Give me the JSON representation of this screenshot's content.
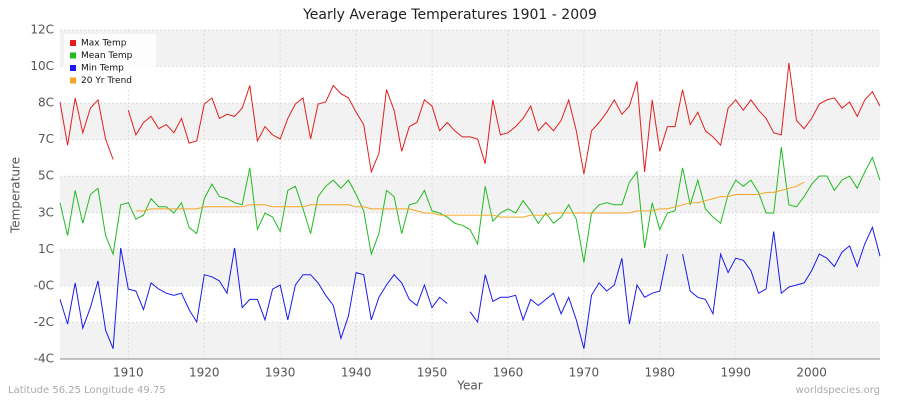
{
  "chart_data": {
    "type": "line",
    "title": "Yearly Average Temperatures 1901 - 2009",
    "x_label": "Year",
    "y_label": "Temperature",
    "footer_left": "Latitude 56.25 Longitude 49.75",
    "footer_right": "worldspecies.org",
    "legend": "top-left",
    "grid": true,
    "xlim": [
      1901,
      2009
    ],
    "xticks": [
      1910,
      1920,
      1930,
      1940,
      1950,
      1960,
      1970,
      1980,
      1990,
      2000
    ],
    "ylim": [
      -4,
      12
    ],
    "yticks": [
      {
        "value": -4,
        "label": "-4C"
      },
      {
        "value": -2.22,
        "label": "-2C"
      },
      {
        "value": -0.44,
        "label": "-0C"
      },
      {
        "value": 1.33,
        "label": "1C"
      },
      {
        "value": 3.11,
        "label": "3C"
      },
      {
        "value": 4.89,
        "label": "5C"
      },
      {
        "value": 6.67,
        "label": "7C"
      },
      {
        "value": 8.44,
        "label": "8C"
      },
      {
        "value": 10.22,
        "label": "10C"
      },
      {
        "value": 12,
        "label": "12C"
      }
    ],
    "x": [
      1901,
      1902,
      1903,
      1904,
      1905,
      1906,
      1907,
      1908,
      1909,
      1910,
      1911,
      1912,
      1913,
      1914,
      1915,
      1916,
      1917,
      1918,
      1919,
      1920,
      1921,
      1922,
      1923,
      1924,
      1925,
      1926,
      1927,
      1928,
      1929,
      1930,
      1931,
      1932,
      1933,
      1934,
      1935,
      1936,
      1937,
      1938,
      1939,
      1940,
      1941,
      1942,
      1943,
      1944,
      1945,
      1946,
      1947,
      1948,
      1949,
      1950,
      1951,
      1952,
      1953,
      1954,
      1955,
      1956,
      1957,
      1958,
      1959,
      1960,
      1961,
      1962,
      1963,
      1964,
      1965,
      1966,
      1967,
      1968,
      1969,
      1970,
      1971,
      1972,
      1973,
      1974,
      1975,
      1976,
      1977,
      1978,
      1979,
      1980,
      1981,
      1982,
      1983,
      1984,
      1985,
      1986,
      1987,
      1988,
      1989,
      1990,
      1991,
      1992,
      1993,
      1994,
      1995,
      1996,
      1997,
      1998,
      1999,
      2000,
      2001,
      2002,
      2003,
      2004,
      2005,
      2006,
      2007,
      2008,
      2009
    ],
    "series": [
      {
        "name": "Max Temp",
        "color": "#e02020",
        "values": [
          8.5,
          6.4,
          8.7,
          7.0,
          8.2,
          8.6,
          6.7,
          5.7,
          null,
          8.1,
          6.9,
          7.5,
          7.8,
          7.2,
          7.4,
          7.0,
          7.7,
          6.5,
          6.6,
          8.4,
          8.7,
          7.7,
          7.9,
          7.8,
          8.2,
          9.3,
          6.6,
          7.3,
          6.9,
          6.7,
          7.7,
          8.4,
          8.7,
          6.7,
          8.4,
          8.5,
          9.3,
          8.9,
          8.7,
          8.0,
          7.4,
          5.1,
          6.0,
          9.1,
          8.1,
          6.1,
          7.3,
          7.5,
          8.6,
          8.3,
          7.1,
          7.5,
          7.1,
          6.8,
          6.8,
          6.7,
          5.5,
          8.6,
          6.9,
          7.0,
          7.3,
          7.7,
          8.3,
          7.1,
          7.5,
          7.1,
          7.6,
          8.6,
          7.1,
          5.0,
          7.1,
          7.5,
          8.0,
          8.6,
          7.9,
          8.3,
          9.5,
          5.1,
          8.6,
          6.1,
          7.3,
          7.3,
          9.1,
          7.4,
          8.0,
          7.1,
          6.8,
          6.4,
          8.2,
          8.6,
          8.1,
          8.6,
          8.1,
          7.7,
          7.0,
          6.9,
          10.4,
          7.6,
          7.2,
          7.7,
          8.4,
          8.6,
          8.7,
          8.2,
          8.5,
          7.8,
          8.6,
          9.0,
          8.3
        ]
      },
      {
        "name": "Mean Temp",
        "color": "#22bb22",
        "values": [
          3.6,
          2.0,
          4.2,
          2.6,
          4.0,
          4.3,
          2.0,
          1.1,
          3.5,
          3.6,
          2.8,
          3.0,
          3.8,
          3.4,
          3.4,
          3.1,
          3.6,
          2.4,
          2.1,
          3.8,
          4.5,
          3.9,
          3.8,
          3.6,
          3.5,
          5.3,
          2.3,
          3.1,
          2.9,
          2.2,
          4.2,
          4.4,
          3.3,
          2.1,
          3.9,
          4.4,
          4.7,
          4.3,
          4.7,
          4.0,
          3.2,
          1.1,
          2.1,
          4.2,
          3.9,
          2.1,
          3.5,
          3.6,
          4.2,
          3.2,
          3.1,
          2.9,
          2.6,
          2.5,
          2.3,
          1.6,
          4.4,
          2.7,
          3.1,
          3.3,
          3.1,
          3.7,
          3.2,
          2.6,
          3.1,
          2.6,
          2.9,
          3.5,
          2.8,
          0.7,
          3.1,
          3.5,
          3.6,
          3.5,
          3.5,
          4.6,
          5.1,
          1.4,
          3.6,
          2.3,
          3.1,
          3.2,
          5.3,
          3.5,
          4.7,
          3.3,
          2.9,
          2.6,
          4.0,
          4.7,
          4.4,
          4.7,
          4.1,
          3.1,
          3.1,
          6.3,
          3.5,
          3.4,
          3.9,
          4.5,
          4.9,
          4.9,
          4.2,
          4.7,
          4.9,
          4.3,
          5.1,
          5.8,
          4.7
        ]
      },
      {
        "name": "Min Temp",
        "color": "#1a1aee",
        "values": [
          -1.1,
          -2.3,
          -0.3,
          -2.5,
          -1.5,
          -0.2,
          -2.6,
          -3.5,
          1.4,
          -0.6,
          -0.7,
          -1.6,
          -0.3,
          -0.6,
          -0.8,
          -0.9,
          -0.8,
          -1.6,
          -2.2,
          0.1,
          0.0,
          -0.2,
          -0.8,
          1.4,
          -1.5,
          -1.1,
          -1.1,
          -2.1,
          -0.6,
          -0.4,
          -2.1,
          -0.4,
          0.1,
          0.1,
          -0.3,
          -0.9,
          -1.4,
          -3.0,
          -1.9,
          0.2,
          0.1,
          -2.1,
          -1.0,
          -0.4,
          0.1,
          -0.3,
          -1.1,
          -1.4,
          -0.4,
          -1.5,
          -1.0,
          -1.3,
          null,
          null,
          -1.7,
          -2.2,
          0.1,
          -1.2,
          -1.0,
          -1.0,
          -0.9,
          -2.1,
          -1.1,
          -1.4,
          -1.1,
          -0.8,
          -1.8,
          -1.0,
          -2.1,
          -3.5,
          -0.9,
          -0.3,
          -0.7,
          -0.4,
          0.9,
          -2.3,
          -0.4,
          -1.0,
          -0.8,
          -0.7,
          1.1,
          null,
          1.1,
          -0.7,
          -1.0,
          -1.1,
          -1.8,
          1.1,
          0.2,
          0.9,
          0.8,
          0.3,
          -0.8,
          -0.6,
          2.2,
          -0.8,
          -0.5,
          -0.4,
          -0.3,
          0.3,
          1.1,
          0.9,
          0.5,
          1.2,
          1.5,
          0.5,
          1.6,
          2.4,
          1.0
        ]
      },
      {
        "name": "20 Yr Trend",
        "color": "#f5a623",
        "values": [
          null,
          null,
          null,
          null,
          null,
          null,
          null,
          null,
          null,
          null,
          3.2,
          3.2,
          3.3,
          3.3,
          3.3,
          3.3,
          3.3,
          3.3,
          3.3,
          3.4,
          3.4,
          3.4,
          3.4,
          3.4,
          3.4,
          3.5,
          3.5,
          3.5,
          3.4,
          3.4,
          3.4,
          3.4,
          3.4,
          3.5,
          3.5,
          3.5,
          3.5,
          3.5,
          3.5,
          3.4,
          3.4,
          3.3,
          3.3,
          3.3,
          3.3,
          3.3,
          3.3,
          3.2,
          3.1,
          3.1,
          3.0,
          3.0,
          3.0,
          3.0,
          3.0,
          3.0,
          3.0,
          3.0,
          2.9,
          2.9,
          2.9,
          2.9,
          3.0,
          3.0,
          3.0,
          3.1,
          3.1,
          3.1,
          3.1,
          3.1,
          3.1,
          3.1,
          3.1,
          3.1,
          3.1,
          3.1,
          3.2,
          3.2,
          3.2,
          3.3,
          3.3,
          3.4,
          3.5,
          3.6,
          3.6,
          3.7,
          3.8,
          3.9,
          3.9,
          4.0,
          4.0,
          4.0,
          4.0,
          4.1,
          4.1,
          4.2,
          4.3,
          4.4,
          4.6,
          null,
          null,
          null,
          null,
          null,
          null,
          null,
          null,
          null,
          null
        ]
      }
    ]
  }
}
